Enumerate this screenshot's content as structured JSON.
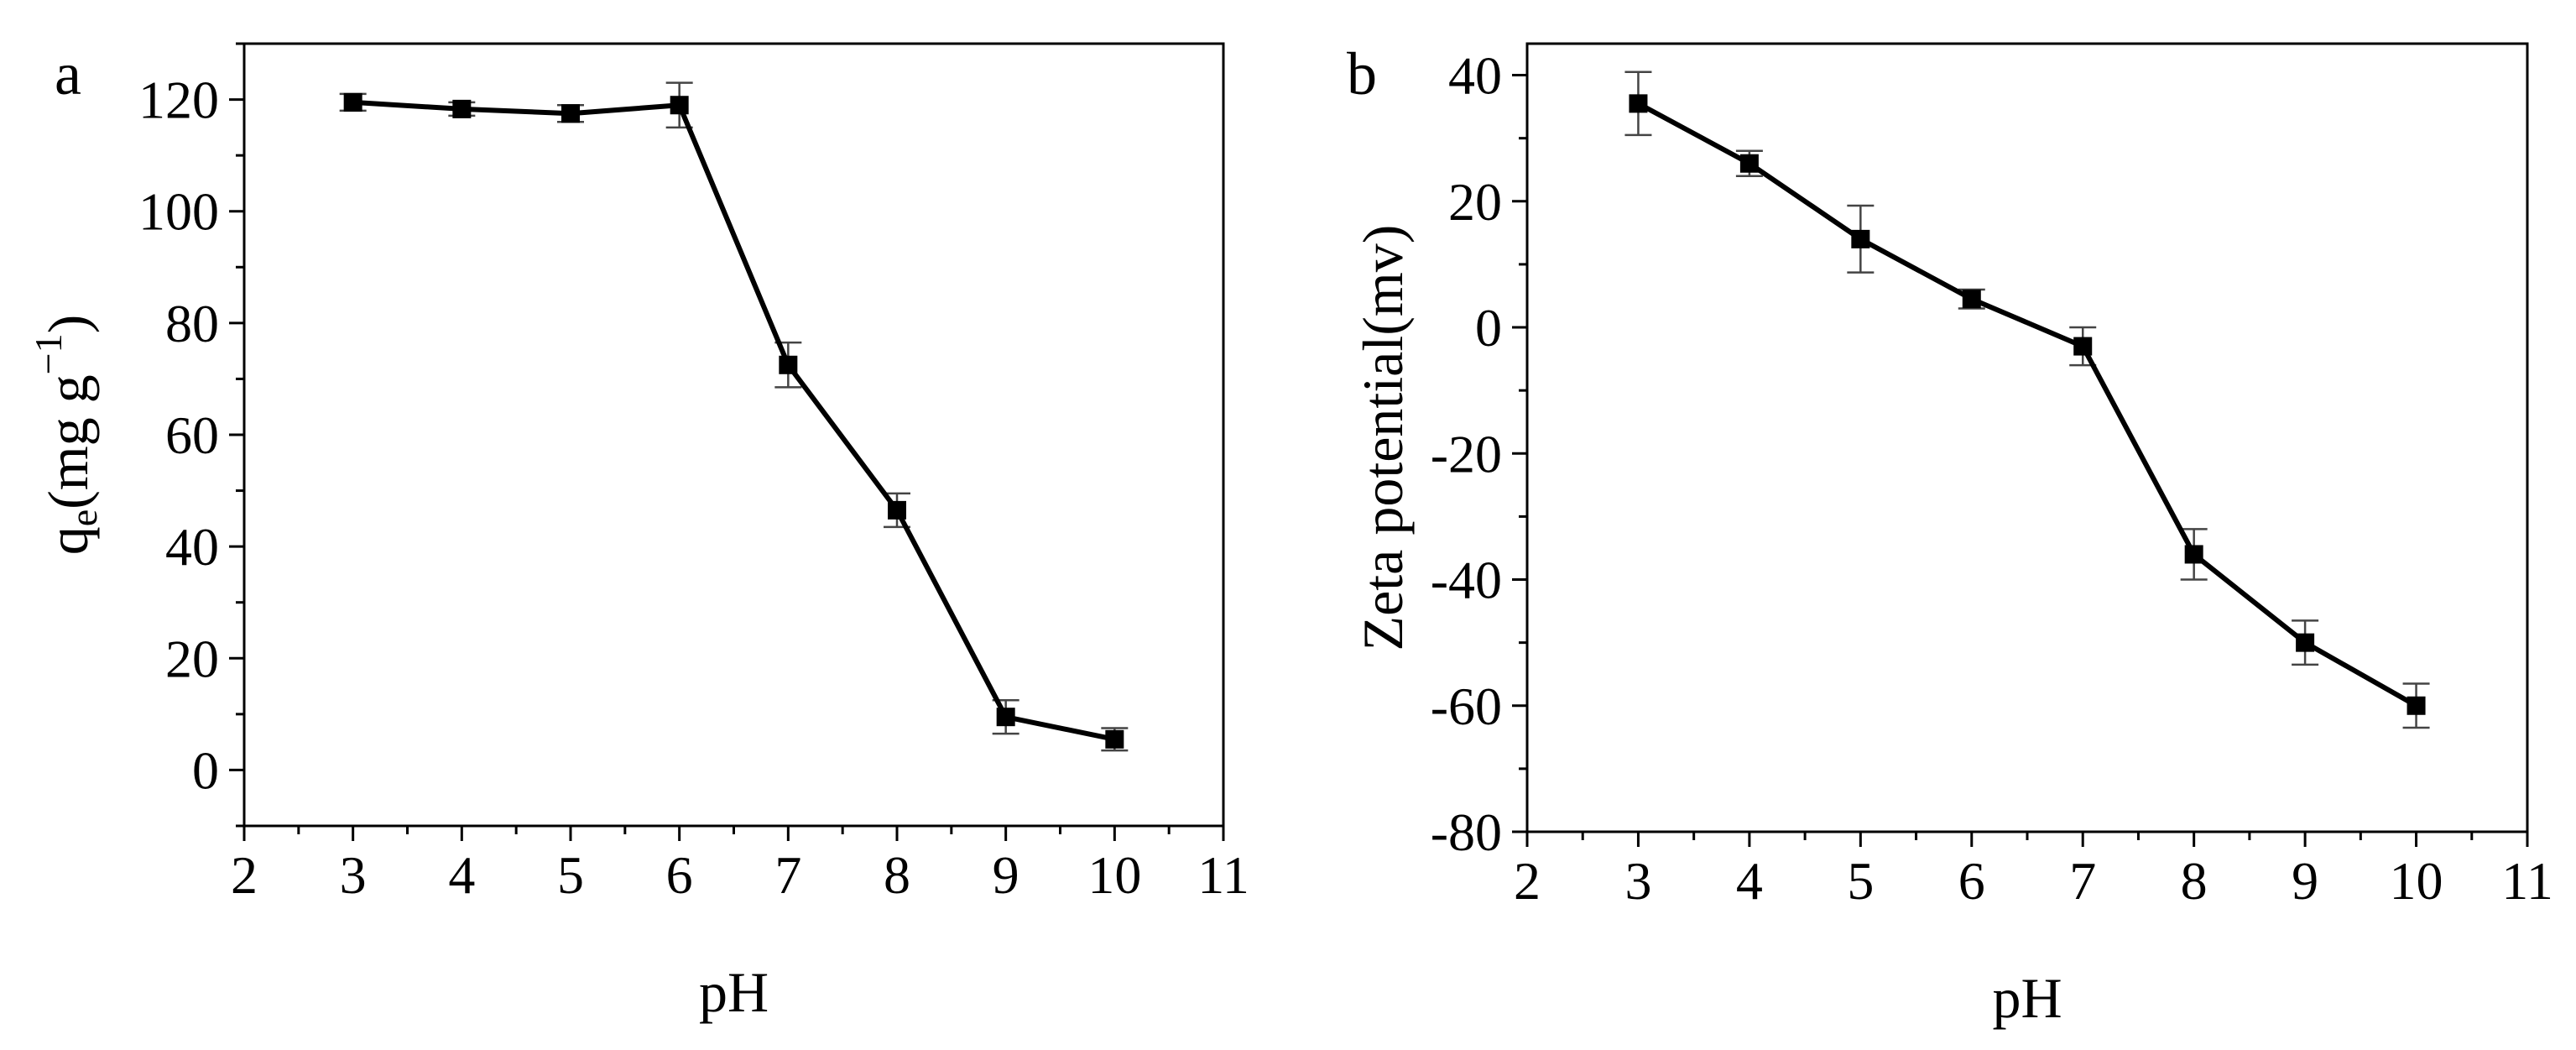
{
  "chart_data": [
    {
      "panel_label": "a",
      "type": "line",
      "markers": "square",
      "error_bars": true,
      "xlabel": "pH",
      "ylabel": {
        "main": "q",
        "subscript": "e",
        "rest": "(mg g",
        "superscript": "−1",
        "close": ")"
      },
      "xlim": [
        2,
        11
      ],
      "ylim": [
        -10,
        130
      ],
      "xticks": [
        2,
        3,
        4,
        5,
        6,
        7,
        8,
        9,
        10,
        11
      ],
      "yticks": [
        0,
        20,
        40,
        60,
        80,
        100,
        120
      ],
      "xticklabels": [
        "2",
        "3",
        "4",
        "5",
        "6",
        "7",
        "8",
        "9",
        "10",
        "11"
      ],
      "yticklabels": [
        "0",
        "20",
        "40",
        "60",
        "80",
        "100",
        "120"
      ],
      "x": [
        3,
        4,
        5,
        6,
        7,
        8,
        9,
        10
      ],
      "y": [
        119.5,
        118.3,
        117.5,
        119,
        72.5,
        46.5,
        9.5,
        5.5
      ],
      "yerr": [
        1.5,
        1.2,
        1.5,
        4,
        4,
        3,
        3,
        2
      ],
      "color": "#000000",
      "errorbar_color": "#444444"
    },
    {
      "panel_label": "b",
      "type": "line",
      "markers": "square",
      "error_bars": true,
      "xlabel": "pH",
      "ylabel": {
        "main": "Zeta potential(mv)"
      },
      "xlim": [
        2,
        11
      ],
      "ylim": [
        -80,
        45
      ],
      "xticks": [
        2,
        3,
        4,
        5,
        6,
        7,
        8,
        9,
        10,
        11
      ],
      "yticks": [
        -80,
        -60,
        -40,
        -20,
        0,
        20,
        40
      ],
      "xticklabels": [
        "2",
        "3",
        "4",
        "5",
        "6",
        "7",
        "8",
        "9",
        "10",
        "11"
      ],
      "yticklabels": [
        "-80",
        "-60",
        "-40",
        "-20",
        "0",
        "20",
        "40"
      ],
      "x": [
        3,
        4,
        5,
        6,
        7,
        8,
        9,
        10
      ],
      "y": [
        35.5,
        26,
        14,
        4.5,
        -3,
        -36,
        -50,
        -60
      ],
      "yerr": [
        5,
        2,
        5.3,
        1.5,
        3,
        4,
        3.5,
        3.5
      ],
      "color": "#000000",
      "errorbar_color": "#444444"
    }
  ]
}
